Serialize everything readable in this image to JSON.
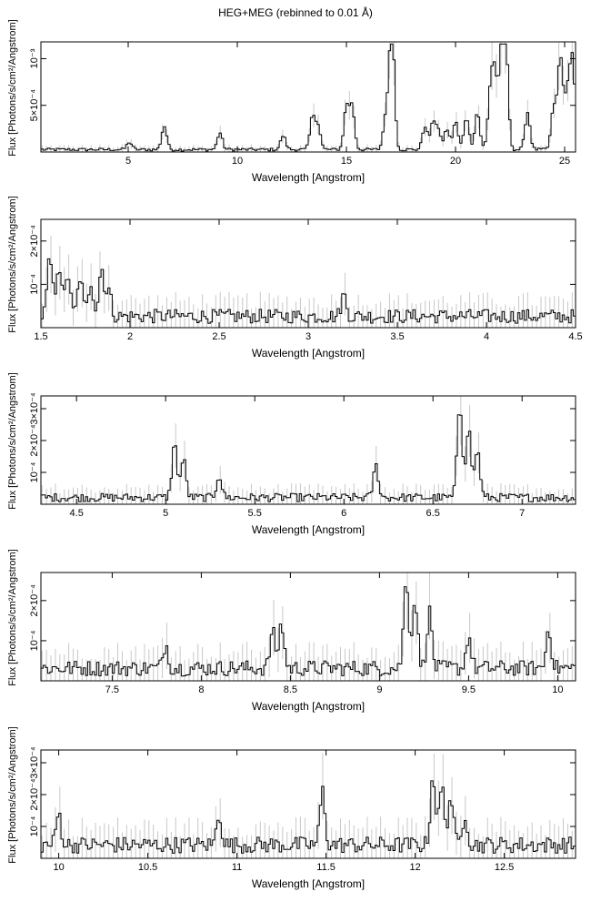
{
  "title": "HEG+MEG (rebinned to 0.01 Å)",
  "chart_data": [
    {
      "type": "line",
      "xlabel": "Wavelength [Angstrom]",
      "ylabel": "Flux [Photons/s/cm²/Angstrom]",
      "xlim": [
        1,
        25.5
      ],
      "ylim": [
        0,
        0.00118
      ],
      "xticks": [
        5,
        10,
        15,
        20,
        25
      ],
      "xtick_labels": [
        "5",
        "10",
        "15",
        "20",
        "25"
      ],
      "yticks": [
        0.0005,
        0.001
      ],
      "ytick_labels": [
        "5×10⁻⁴",
        "10⁻³"
      ],
      "baseline": 2.5e-05,
      "lines": [
        {
          "x": 5.05,
          "y": 8e-05
        },
        {
          "x": 6.65,
          "y": 0.00025
        },
        {
          "x": 9.2,
          "y": 0.00018
        },
        {
          "x": 12.1,
          "y": 0.00015
        },
        {
          "x": 13.45,
          "y": 0.00035
        },
        {
          "x": 13.7,
          "y": 0.00025
        },
        {
          "x": 15.0,
          "y": 0.00045
        },
        {
          "x": 15.26,
          "y": 0.00045
        },
        {
          "x": 16.8,
          "y": 0.00035
        },
        {
          "x": 17.05,
          "y": 0.00062
        },
        {
          "x": 17.1,
          "y": 0.0008
        },
        {
          "x": 18.6,
          "y": 0.00025
        },
        {
          "x": 18.97,
          "y": 0.00028
        },
        {
          "x": 19.2,
          "y": 0.0002
        },
        {
          "x": 19.6,
          "y": 0.00022
        },
        {
          "x": 20.0,
          "y": 0.0003
        },
        {
          "x": 20.5,
          "y": 0.00035
        },
        {
          "x": 21.0,
          "y": 0.0004
        },
        {
          "x": 21.6,
          "y": 0.0006
        },
        {
          "x": 21.8,
          "y": 0.00075
        },
        {
          "x": 22.1,
          "y": 0.00095
        },
        {
          "x": 22.3,
          "y": 0.00115
        },
        {
          "x": 23.3,
          "y": 0.0004
        },
        {
          "x": 24.5,
          "y": 0.00045
        },
        {
          "x": 24.8,
          "y": 0.00098
        },
        {
          "x": 25.1,
          "y": 0.00055
        },
        {
          "x": 25.35,
          "y": 0.001
        }
      ]
    },
    {
      "type": "line",
      "xlabel": "Wavelength [Angstrom]",
      "ylabel": "Flux [Photons/s/cm²/Angstrom]",
      "xlim": [
        1.5,
        4.5
      ],
      "ylim": [
        0,
        0.00025
      ],
      "xticks": [
        1.5,
        2,
        2.5,
        3,
        3.5,
        4,
        4.5
      ],
      "xtick_labels": [
        "1.5",
        "2",
        "2.5",
        "3",
        "3.5",
        "4",
        "4.5"
      ],
      "yticks": [
        0.0001,
        0.0002
      ],
      "ytick_labels": [
        "10⁻⁴",
        "2×10⁻⁴"
      ],
      "baseline": 2.5e-05,
      "lines": [
        {
          "x": 1.55,
          "y": 0.00013
        },
        {
          "x": 1.6,
          "y": 0.00012
        },
        {
          "x": 1.65,
          "y": 0.0001
        },
        {
          "x": 1.72,
          "y": 9e-05
        },
        {
          "x": 1.78,
          "y": 8e-05
        },
        {
          "x": 1.84,
          "y": 0.00011
        },
        {
          "x": 1.88,
          "y": 6e-05
        },
        {
          "x": 3.2,
          "y": 5e-05
        }
      ]
    },
    {
      "type": "line",
      "xlabel": "Wavelength [Angstrom]",
      "ylabel": "Flux [Photons/s/cm²/Angstrom]",
      "xlim": [
        4.3,
        7.3
      ],
      "ylim": [
        0,
        0.00034
      ],
      "xticks": [
        4.5,
        5,
        5.5,
        6,
        6.5,
        7
      ],
      "xtick_labels": [
        "4.5",
        "5",
        "5.5",
        "6",
        "6.5",
        "7"
      ],
      "yticks": [
        0.0001,
        0.0002,
        0.0003
      ],
      "ytick_labels": [
        "10⁻⁴",
        "2×10⁻⁴",
        "3×10⁻⁴"
      ],
      "baseline": 2e-05,
      "lines": [
        {
          "x": 5.05,
          "y": 0.00017
        },
        {
          "x": 5.1,
          "y": 0.00012
        },
        {
          "x": 5.3,
          "y": 7e-05
        },
        {
          "x": 6.18,
          "y": 0.0001
        },
        {
          "x": 6.65,
          "y": 0.00029
        },
        {
          "x": 6.7,
          "y": 0.00022
        },
        {
          "x": 6.75,
          "y": 0.00015
        }
      ]
    },
    {
      "type": "line",
      "xlabel": "Wavelength [Angstrom]",
      "ylabel": "Flux [Photons/s/cm²/Angstrom]",
      "xlim": [
        7.1,
        10.1
      ],
      "ylim": [
        0,
        0.00027
      ],
      "xticks": [
        7.5,
        8,
        8.5,
        9,
        9.5,
        10
      ],
      "xtick_labels": [
        "7.5",
        "8",
        "8.5",
        "9",
        "9.5",
        "10"
      ],
      "yticks": [
        0.0001,
        0.0002
      ],
      "ytick_labels": [
        "10⁻⁴",
        "2×10⁻⁴"
      ],
      "baseline": 3e-05,
      "lines": [
        {
          "x": 7.8,
          "y": 6e-05
        },
        {
          "x": 8.4,
          "y": 9e-05
        },
        {
          "x": 8.45,
          "y": 0.00011
        },
        {
          "x": 9.15,
          "y": 0.00022
        },
        {
          "x": 9.2,
          "y": 0.00017
        },
        {
          "x": 9.28,
          "y": 0.00014
        },
        {
          "x": 9.5,
          "y": 8e-05
        },
        {
          "x": 9.95,
          "y": 0.0001
        }
      ]
    },
    {
      "type": "line",
      "xlabel": "Wavelength [Angstrom]",
      "ylabel": "Flux [Photons/s/cm²/Angstrom]",
      "xlim": [
        9.9,
        12.9
      ],
      "ylim": [
        0,
        0.00034
      ],
      "xticks": [
        10,
        10.5,
        11,
        11.5,
        12,
        12.5
      ],
      "xtick_labels": [
        "10",
        "10.5",
        "11",
        "11.5",
        "12",
        "12.5"
      ],
      "yticks": [
        0.0001,
        0.0002,
        0.0003
      ],
      "ytick_labels": [
        "10⁻⁴",
        "2×10⁻⁴",
        "3×10⁻⁴"
      ],
      "baseline": 4e-05,
      "lines": [
        {
          "x": 10.0,
          "y": 0.0001
        },
        {
          "x": 10.9,
          "y": 0.0001
        },
        {
          "x": 11.48,
          "y": 0.00017
        },
        {
          "x": 12.1,
          "y": 0.00022
        },
        {
          "x": 12.15,
          "y": 0.00018
        },
        {
          "x": 12.2,
          "y": 0.00015
        },
        {
          "x": 12.28,
          "y": 0.0001
        }
      ]
    }
  ]
}
